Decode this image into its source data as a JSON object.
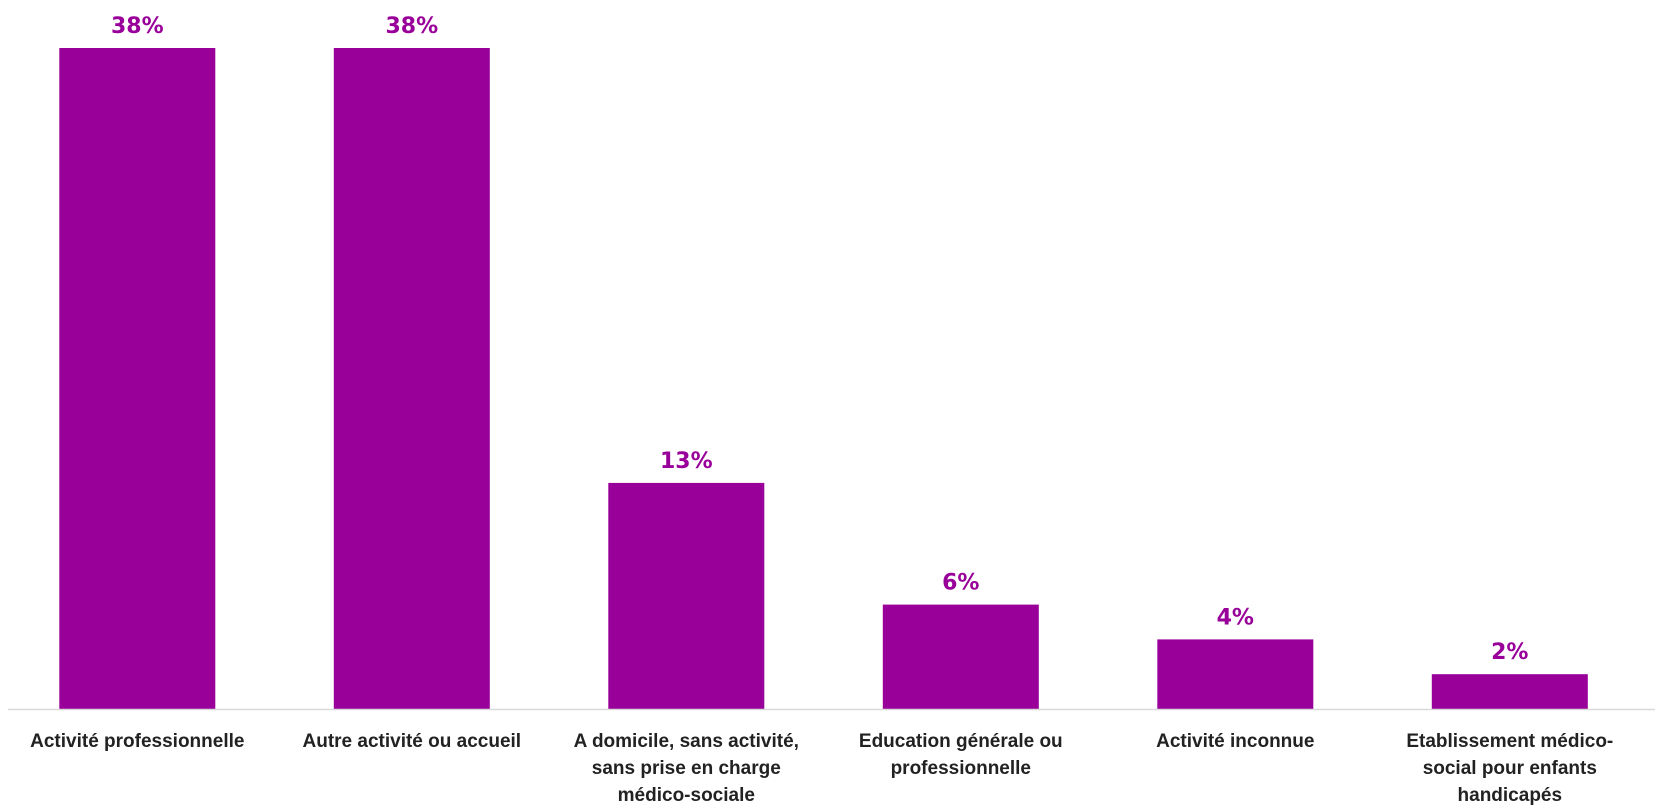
{
  "chart_data": {
    "type": "bar",
    "categories": [
      "Activité professionnelle",
      "Autre activité ou accueil",
      "A domicile, sans activité, sans prise en charge médico-sociale",
      "Education générale ou professionnelle",
      "Activité inconnue",
      "Etablissement médico-social pour enfants handicapés"
    ],
    "category_lines": [
      [
        "Activité professionnelle"
      ],
      [
        "Autre activité ou accueil"
      ],
      [
        "A domicile, sans activité,",
        "sans prise en charge",
        "médico-sociale"
      ],
      [
        "Education générale ou",
        "professionnelle"
      ],
      [
        "Activité inconnue"
      ],
      [
        "Etablissement médico-",
        "social pour enfants",
        "handicapés"
      ]
    ],
    "values": [
      38,
      38,
      13,
      6,
      4,
      2
    ],
    "value_labels": [
      "38%",
      "38%",
      "13%",
      "6%",
      "4%",
      "2%"
    ],
    "unit": "%",
    "ylim": [
      0,
      38
    ],
    "grid": false,
    "legend": "none",
    "colors": {
      "bar": "#990099",
      "value_label": "#990099",
      "axis": "#d9d9d9",
      "category_text": "#222222"
    }
  }
}
